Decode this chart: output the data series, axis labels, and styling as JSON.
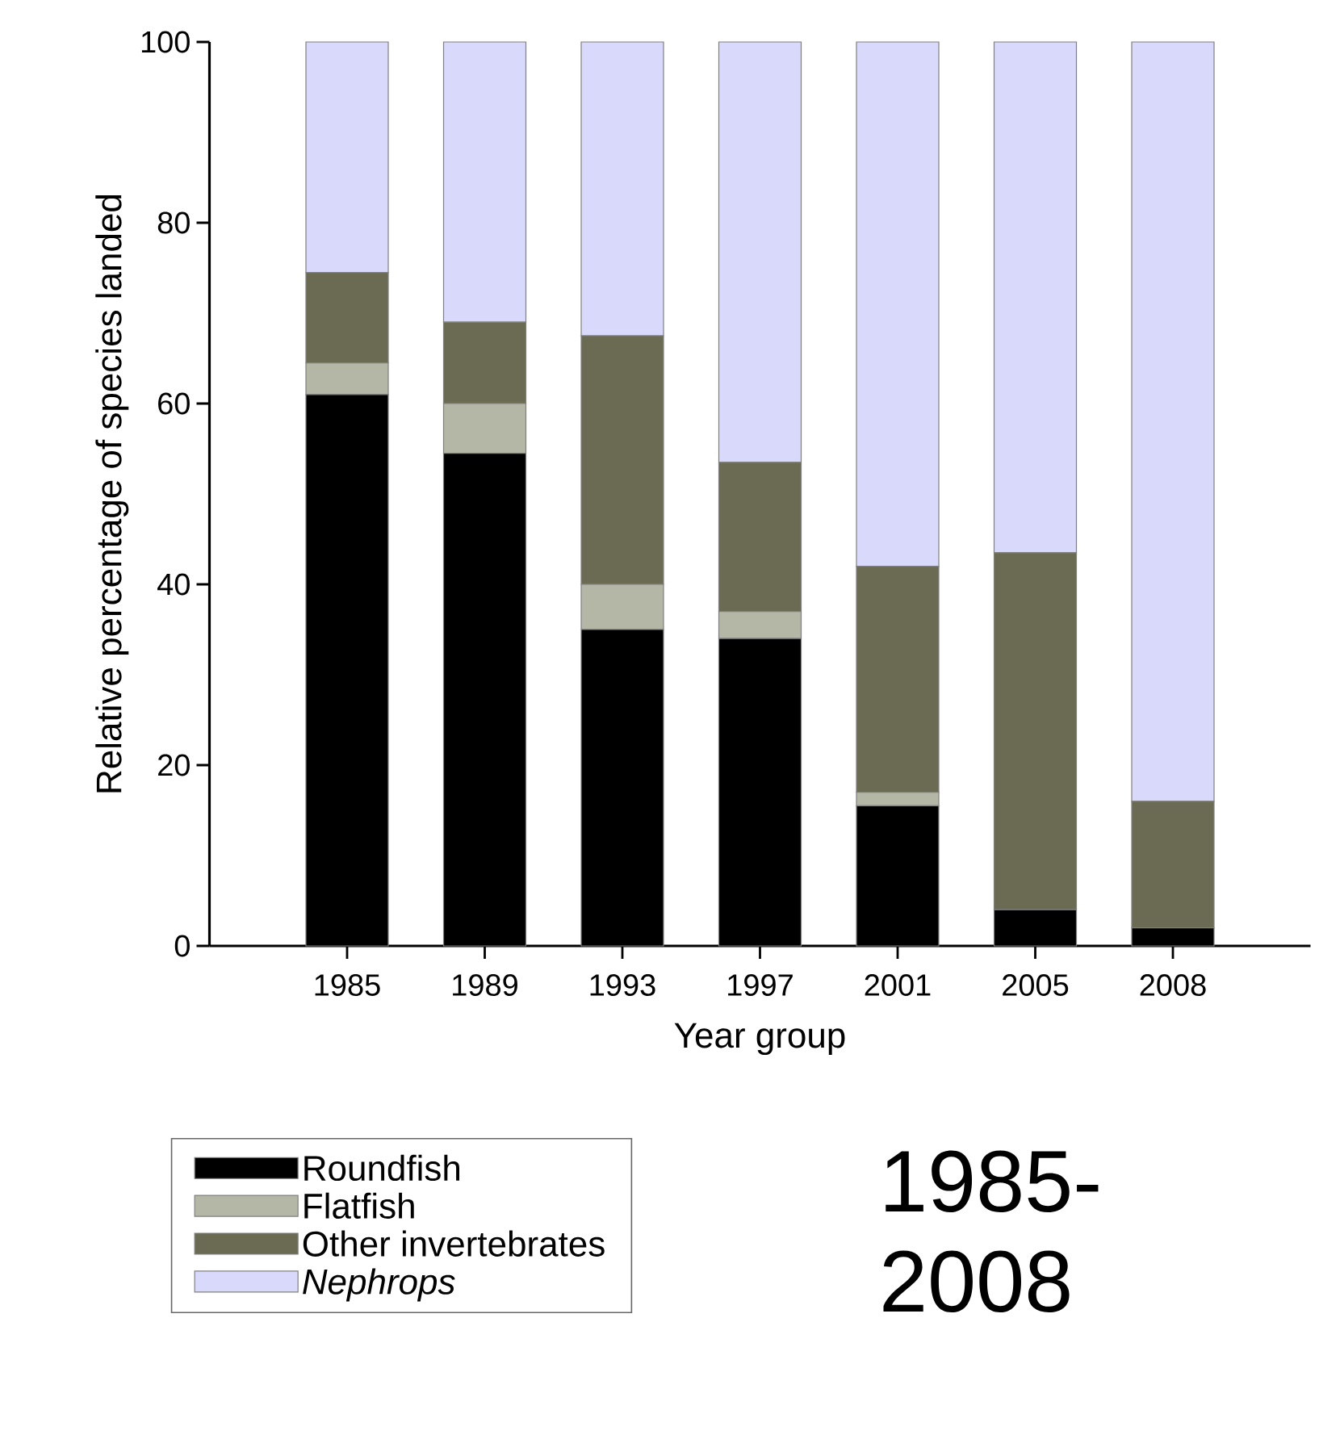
{
  "chart_data": {
    "type": "bar",
    "stacked": true,
    "xlabel": "Year group",
    "ylabel": "Relative percentage of species landed",
    "categories": [
      "1985",
      "1989",
      "1993",
      "1997",
      "2001",
      "2005",
      "2008"
    ],
    "series": [
      {
        "name": "Roundfish",
        "color": "#000000",
        "values": [
          61,
          54.5,
          35,
          34,
          15.5,
          4,
          2
        ]
      },
      {
        "name": "Flatfish",
        "color": "#b4b6a6",
        "values": [
          3.5,
          5.5,
          5,
          3,
          1.5,
          0,
          0
        ]
      },
      {
        "name": "Other invertebrates",
        "color": "#6b6b53",
        "values": [
          10,
          9,
          27.5,
          16.5,
          25,
          39.5,
          14
        ]
      },
      {
        "name": "*Nephrops*",
        "color": "#d9d9fb",
        "values": [
          25.5,
          31,
          32.5,
          46.5,
          58,
          56.5,
          84
        ]
      }
    ],
    "ylim": [
      0,
      100
    ],
    "yticks": [
      0,
      20,
      40,
      60,
      80,
      100
    ],
    "legend": "bottom",
    "annotations": [
      "1985-2008"
    ]
  }
}
